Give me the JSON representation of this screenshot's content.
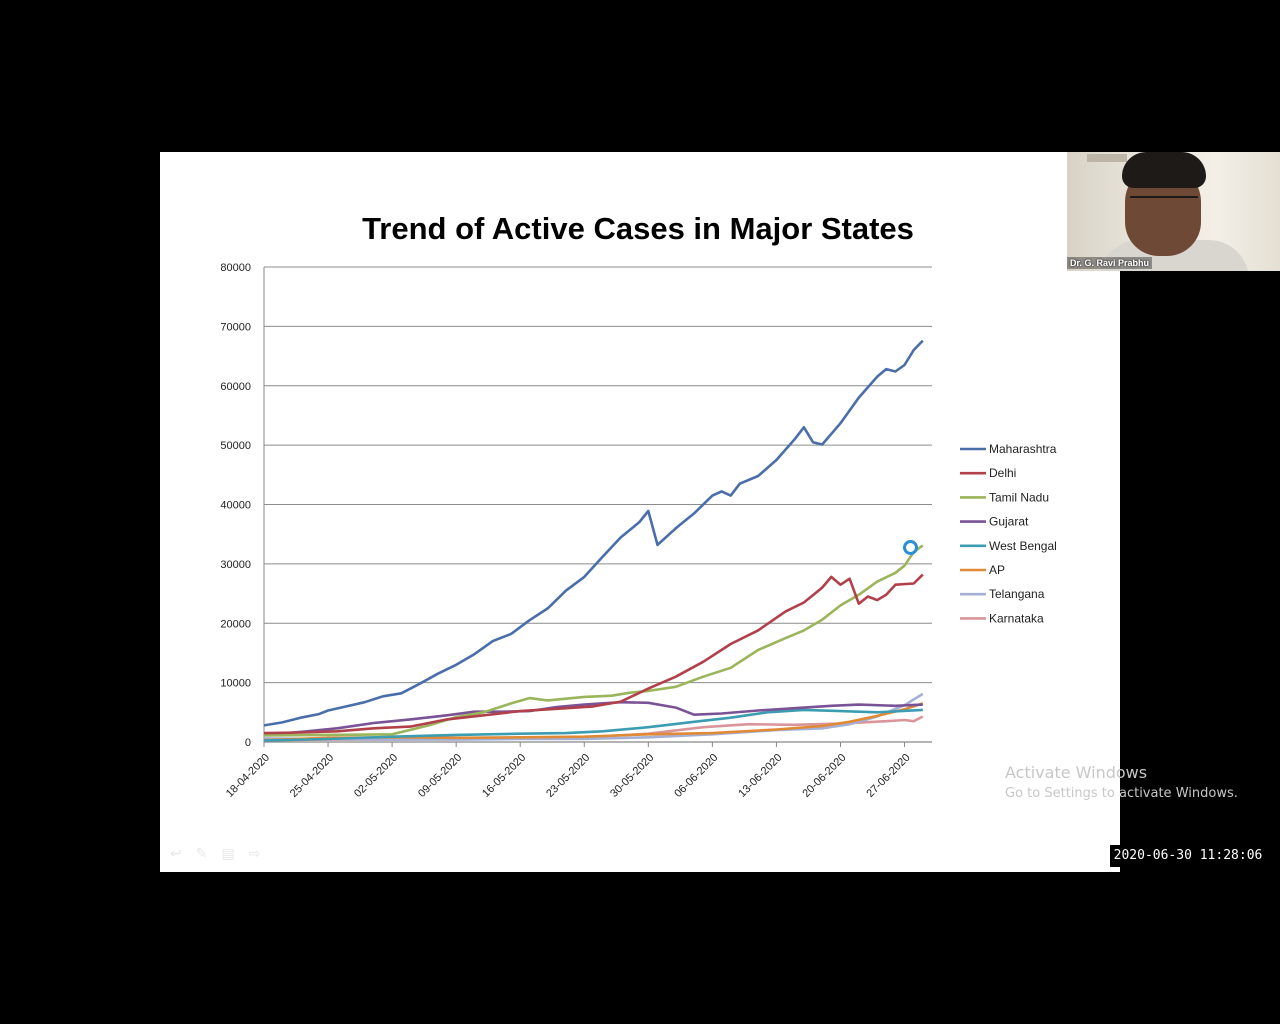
{
  "timestamp": "2020-06-30 11:28:06",
  "webcam": {
    "name": "Dr. G. Ravi Prabhu"
  },
  "watermark": {
    "line1": "Activate Windows",
    "line2": "Go to Settings to activate Windows."
  },
  "toolbar_icons": [
    "back-icon",
    "pen-icon",
    "menu-icon",
    "forward-icon"
  ],
  "chart_data": {
    "type": "line",
    "title": "Trend of Active Cases in Major States",
    "xlabel": "",
    "ylabel": "",
    "x_start": "18-04-2020",
    "x_end": "30-06-2020",
    "x_tick_labels": [
      "18-04-2020",
      "25-04-2020",
      "02-05-2020",
      "09-05-2020",
      "16-05-2020",
      "23-05-2020",
      "30-05-2020",
      "06-06-2020",
      "13-06-2020",
      "20-06-2020",
      "27-06-2020"
    ],
    "y_ticks": [
      0,
      10000,
      20000,
      30000,
      40000,
      50000,
      60000,
      70000,
      80000
    ],
    "y_tick_labels": [
      "0",
      "10000",
      "20000",
      "30000",
      "40000",
      "50000",
      "60000",
      "70000",
      "80000"
    ],
    "ylim": [
      0,
      80000
    ],
    "grid": "horizontal",
    "legend_position": "right",
    "series": [
      {
        "name": "Maharashtra",
        "color": "#4a6eaa",
        "points": [
          [
            "18-04-2020",
            2800
          ],
          [
            "20-04-2020",
            3300
          ],
          [
            "22-04-2020",
            4100
          ],
          [
            "24-04-2020",
            4700
          ],
          [
            "25-04-2020",
            5300
          ],
          [
            "27-04-2020",
            6000
          ],
          [
            "29-04-2020",
            6700
          ],
          [
            "01-05-2020",
            7700
          ],
          [
            "03-05-2020",
            8200
          ],
          [
            "05-05-2020",
            9800
          ],
          [
            "07-05-2020",
            11500
          ],
          [
            "09-05-2020",
            13000
          ],
          [
            "11-05-2020",
            14800
          ],
          [
            "13-05-2020",
            17000
          ],
          [
            "15-05-2020",
            18200
          ],
          [
            "17-05-2020",
            20500
          ],
          [
            "19-05-2020",
            22500
          ],
          [
            "21-05-2020",
            25500
          ],
          [
            "23-05-2020",
            27800
          ],
          [
            "25-05-2020",
            31200
          ],
          [
            "27-05-2020",
            34500
          ],
          [
            "29-05-2020",
            37000
          ],
          [
            "30-05-2020",
            38900
          ],
          [
            "31-05-2020",
            33200
          ],
          [
            "02-06-2020",
            36000
          ],
          [
            "04-06-2020",
            38500
          ],
          [
            "06-06-2020",
            41500
          ],
          [
            "07-06-2020",
            42200
          ],
          [
            "08-06-2020",
            41500
          ],
          [
            "09-06-2020",
            43500
          ],
          [
            "11-06-2020",
            44800
          ],
          [
            "13-06-2020",
            47500
          ],
          [
            "15-06-2020",
            51000
          ],
          [
            "16-06-2020",
            53000
          ],
          [
            "17-06-2020",
            50500
          ],
          [
            "18-06-2020",
            50100
          ],
          [
            "20-06-2020",
            53700
          ],
          [
            "22-06-2020",
            58000
          ],
          [
            "24-06-2020",
            61500
          ],
          [
            "25-06-2020",
            62800
          ],
          [
            "26-06-2020",
            62400
          ],
          [
            "27-06-2020",
            63500
          ],
          [
            "28-06-2020",
            66000
          ],
          [
            "29-06-2020",
            67600
          ]
        ]
      },
      {
        "name": "Delhi",
        "color": "#b1404a",
        "points": [
          [
            "18-04-2020",
            1500
          ],
          [
            "22-04-2020",
            1600
          ],
          [
            "26-04-2020",
            1800
          ],
          [
            "30-04-2020",
            2300
          ],
          [
            "04-05-2020",
            2600
          ],
          [
            "08-05-2020",
            3800
          ],
          [
            "12-05-2020",
            4500
          ],
          [
            "16-05-2020",
            5200
          ],
          [
            "20-05-2020",
            5600
          ],
          [
            "24-05-2020",
            6000
          ],
          [
            "27-05-2020",
            6800
          ],
          [
            "30-05-2020",
            9000
          ],
          [
            "02-06-2020",
            11000
          ],
          [
            "05-06-2020",
            13500
          ],
          [
            "08-06-2020",
            16500
          ],
          [
            "11-06-2020",
            18800
          ],
          [
            "14-06-2020",
            22000
          ],
          [
            "16-06-2020",
            23500
          ],
          [
            "18-06-2020",
            26000
          ],
          [
            "19-06-2020",
            27800
          ],
          [
            "20-06-2020",
            26500
          ],
          [
            "21-06-2020",
            27500
          ],
          [
            "22-06-2020",
            23300
          ],
          [
            "23-06-2020",
            24500
          ],
          [
            "24-06-2020",
            23900
          ],
          [
            "25-06-2020",
            24800
          ],
          [
            "26-06-2020",
            26500
          ],
          [
            "28-06-2020",
            26700
          ],
          [
            "29-06-2020",
            28200
          ]
        ]
      },
      {
        "name": "Tamil Nadu",
        "color": "#9bb55a",
        "points": [
          [
            "18-04-2020",
            1100
          ],
          [
            "25-04-2020",
            1200
          ],
          [
            "02-05-2020",
            1300
          ],
          [
            "06-05-2020",
            2800
          ],
          [
            "09-05-2020",
            4200
          ],
          [
            "12-05-2020",
            5000
          ],
          [
            "15-05-2020",
            6500
          ],
          [
            "17-05-2020",
            7400
          ],
          [
            "19-05-2020",
            7000
          ],
          [
            "21-05-2020",
            7300
          ],
          [
            "23-05-2020",
            7600
          ],
          [
            "26-05-2020",
            7800
          ],
          [
            "28-05-2020",
            8300
          ],
          [
            "30-05-2020",
            8600
          ],
          [
            "02-06-2020",
            9300
          ],
          [
            "05-06-2020",
            11000
          ],
          [
            "08-06-2020",
            12500
          ],
          [
            "11-06-2020",
            15500
          ],
          [
            "14-06-2020",
            17500
          ],
          [
            "16-06-2020",
            18800
          ],
          [
            "18-06-2020",
            20600
          ],
          [
            "20-06-2020",
            23000
          ],
          [
            "22-06-2020",
            24800
          ],
          [
            "24-06-2020",
            27000
          ],
          [
            "26-06-2020",
            28500
          ],
          [
            "27-06-2020",
            29700
          ],
          [
            "28-06-2020",
            32000
          ],
          [
            "29-06-2020",
            33100
          ]
        ]
      },
      {
        "name": "Gujarat",
        "color": "#7a5397",
        "points": [
          [
            "18-04-2020",
            1200
          ],
          [
            "22-04-2020",
            1700
          ],
          [
            "26-04-2020",
            2300
          ],
          [
            "30-04-2020",
            3200
          ],
          [
            "04-05-2020",
            3800
          ],
          [
            "08-05-2020",
            4500
          ],
          [
            "11-05-2020",
            5100
          ],
          [
            "14-05-2020",
            5100
          ],
          [
            "17-05-2020",
            5200
          ],
          [
            "20-05-2020",
            5900
          ],
          [
            "23-05-2020",
            6300
          ],
          [
            "27-05-2020",
            6700
          ],
          [
            "30-05-2020",
            6600
          ],
          [
            "02-06-2020",
            5800
          ],
          [
            "04-06-2020",
            4600
          ],
          [
            "07-06-2020",
            4800
          ],
          [
            "11-06-2020",
            5300
          ],
          [
            "15-06-2020",
            5700
          ],
          [
            "19-06-2020",
            6100
          ],
          [
            "22-06-2020",
            6300
          ],
          [
            "26-06-2020",
            6100
          ],
          [
            "29-06-2020",
            6300
          ]
        ]
      },
      {
        "name": "West Bengal",
        "color": "#3c9db2",
        "points": [
          [
            "18-04-2020",
            250
          ],
          [
            "25-04-2020",
            500
          ],
          [
            "02-05-2020",
            900
          ],
          [
            "09-05-2020",
            1200
          ],
          [
            "16-05-2020",
            1400
          ],
          [
            "21-05-2020",
            1500
          ],
          [
            "25-05-2020",
            1800
          ],
          [
            "30-05-2020",
            2500
          ],
          [
            "04-06-2020",
            3400
          ],
          [
            "08-06-2020",
            4100
          ],
          [
            "12-06-2020",
            5000
          ],
          [
            "16-06-2020",
            5400
          ],
          [
            "20-06-2020",
            5200
          ],
          [
            "24-06-2020",
            5000
          ],
          [
            "29-06-2020",
            5400
          ]
        ]
      },
      {
        "name": "AP",
        "color": "#e08a35",
        "points": [
          [
            "18-04-2020",
            300
          ],
          [
            "25-04-2020",
            700
          ],
          [
            "02-05-2020",
            800
          ],
          [
            "09-05-2020",
            700
          ],
          [
            "16-05-2020",
            800
          ],
          [
            "23-05-2020",
            900
          ],
          [
            "30-05-2020",
            1300
          ],
          [
            "06-06-2020",
            1500
          ],
          [
            "13-06-2020",
            2100
          ],
          [
            "18-06-2020",
            2700
          ],
          [
            "21-06-2020",
            3400
          ],
          [
            "24-06-2020",
            4400
          ],
          [
            "27-06-2020",
            5500
          ],
          [
            "29-06-2020",
            6500
          ]
        ]
      },
      {
        "name": "Telangana",
        "color": "#a5b0d6",
        "points": [
          [
            "18-04-2020",
            600
          ],
          [
            "25-04-2020",
            500
          ],
          [
            "02-05-2020",
            400
          ],
          [
            "09-05-2020",
            400
          ],
          [
            "16-05-2020",
            500
          ],
          [
            "23-05-2020",
            500
          ],
          [
            "30-05-2020",
            800
          ],
          [
            "06-06-2020",
            1300
          ],
          [
            "13-06-2020",
            2000
          ],
          [
            "18-06-2020",
            2300
          ],
          [
            "21-06-2020",
            3000
          ],
          [
            "24-06-2020",
            4300
          ],
          [
            "27-06-2020",
            6200
          ],
          [
            "29-06-2020",
            8100
          ]
        ]
      },
      {
        "name": "Karnataka",
        "color": "#d9959a",
        "points": [
          [
            "18-04-2020",
            300
          ],
          [
            "25-04-2020",
            400
          ],
          [
            "02-05-2020",
            400
          ],
          [
            "09-05-2020",
            500
          ],
          [
            "16-05-2020",
            600
          ],
          [
            "23-05-2020",
            800
          ],
          [
            "30-05-2020",
            1400
          ],
          [
            "05-06-2020",
            2500
          ],
          [
            "10-06-2020",
            3000
          ],
          [
            "15-06-2020",
            2900
          ],
          [
            "20-06-2020",
            3100
          ],
          [
            "25-06-2020",
            3500
          ],
          [
            "27-06-2020",
            3700
          ],
          [
            "28-06-2020",
            3500
          ],
          [
            "29-06-2020",
            4300
          ]
        ]
      }
    ]
  }
}
